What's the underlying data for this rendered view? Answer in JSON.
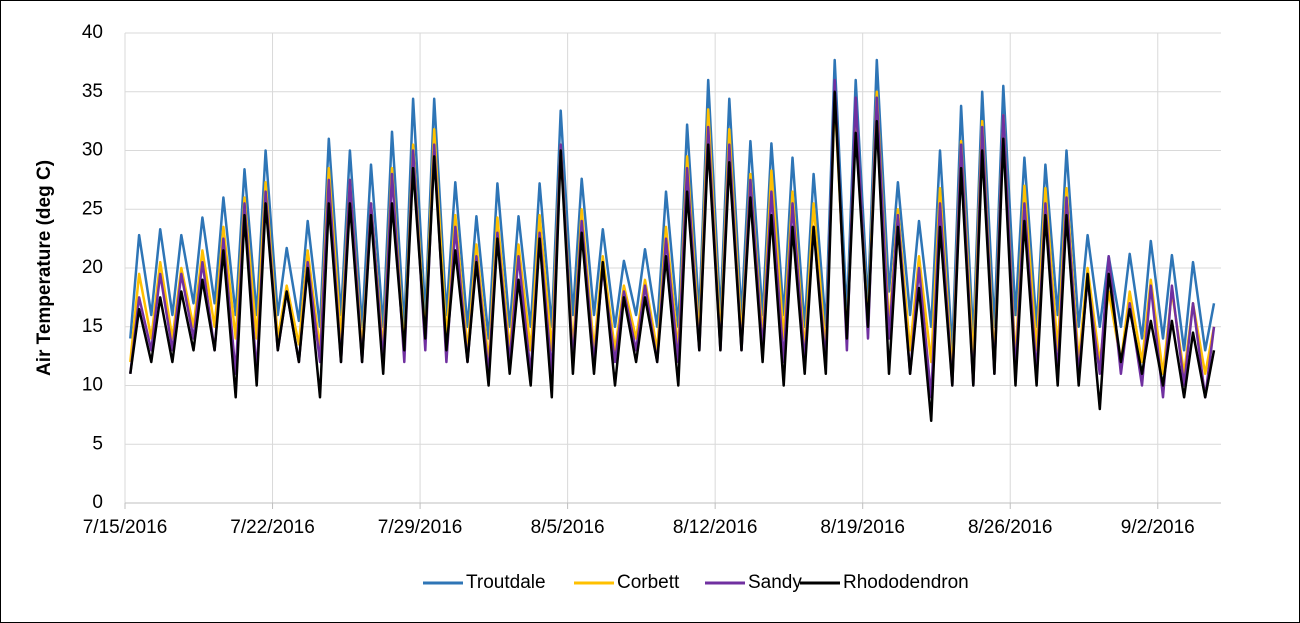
{
  "chart_data": {
    "type": "line",
    "y_label": "Air Temperature (deg C)",
    "xlim": [
      0,
      52
    ],
    "xticks": [
      {
        "value": 0,
        "label": "7/15/2016"
      },
      {
        "value": 7,
        "label": "7/22/2016"
      },
      {
        "value": 14,
        "label": "7/29/2016"
      },
      {
        "value": 21,
        "label": "8/5/2016"
      },
      {
        "value": 28,
        "label": "8/12/2016"
      },
      {
        "value": 35,
        "label": "8/19/2016"
      },
      {
        "value": 42,
        "label": "8/26/2016"
      },
      {
        "value": 49,
        "label": "9/2/2016"
      }
    ],
    "ylim": [
      0,
      40
    ],
    "yticks": [
      0,
      5,
      10,
      15,
      20,
      25,
      30,
      35,
      40
    ],
    "grid": true,
    "legend": "bottom",
    "x": [
      0.25,
      0.67,
      1.25,
      1.67,
      2.25,
      2.67,
      3.25,
      3.67,
      4.25,
      4.67,
      5.25,
      5.67,
      6.25,
      6.67,
      7.25,
      7.67,
      8.25,
      8.67,
      9.25,
      9.67,
      10.25,
      10.67,
      11.25,
      11.67,
      12.25,
      12.67,
      13.25,
      13.67,
      14.25,
      14.67,
      15.25,
      15.67,
      16.25,
      16.67,
      17.25,
      17.67,
      18.25,
      18.67,
      19.25,
      19.67,
      20.25,
      20.67,
      21.25,
      21.67,
      22.25,
      22.67,
      23.25,
      23.67,
      24.25,
      24.67,
      25.25,
      25.67,
      26.25,
      26.67,
      27.25,
      27.67,
      28.25,
      28.67,
      29.25,
      29.67,
      30.25,
      30.67,
      31.25,
      31.67,
      32.25,
      32.67,
      33.25,
      33.67,
      34.25,
      34.67,
      35.25,
      35.67,
      36.25,
      36.67,
      37.25,
      37.67,
      38.25,
      38.67,
      39.25,
      39.67,
      40.25,
      40.67,
      41.25,
      41.67,
      42.25,
      42.67,
      43.25,
      43.67,
      44.25,
      44.67,
      45.25,
      45.67,
      46.25,
      46.67,
      47.25,
      47.67,
      48.25,
      48.67,
      49.25,
      49.67,
      50.25,
      50.67,
      51.25,
      51.67
    ],
    "series": [
      {
        "name": "Troutdale",
        "color": "#2e75b6",
        "values": [
          14,
          22.8,
          16,
          23.3,
          16,
          22.8,
          17,
          24.3,
          17,
          26,
          16,
          28.4,
          16,
          30,
          16,
          21.7,
          15.5,
          24,
          15,
          31,
          16,
          30,
          15,
          28.8,
          15,
          31.6,
          15,
          34.4,
          16,
          34.4,
          16,
          27.3,
          15,
          24.4,
          14,
          27.2,
          15,
          24.4,
          15,
          27.2,
          15,
          33.4,
          16,
          27.6,
          16,
          23.3,
          15,
          20.6,
          16,
          21.6,
          15,
          26.5,
          15,
          32.2,
          16,
          36,
          16,
          34.4,
          16,
          30.8,
          16,
          30.6,
          16,
          29.4,
          15,
          28,
          15,
          37.7,
          16,
          36,
          17,
          37.7,
          18,
          27.3,
          16,
          24,
          15,
          30,
          13,
          33.8,
          14,
          35,
          15,
          35.5,
          16,
          29.4,
          15,
          28.8,
          16,
          30,
          15,
          22.8,
          15,
          21,
          15,
          21.2,
          14,
          22.3,
          14,
          21.1,
          13,
          20.5,
          13,
          17
        ]
      },
      {
        "name": "Corbett",
        "color": "#ffc000",
        "values": [
          12,
          19.5,
          14,
          20.5,
          14,
          20,
          15,
          21.5,
          15,
          23.5,
          14,
          26,
          14,
          27.3,
          14,
          18.5,
          13.5,
          21.5,
          13,
          28.5,
          14,
          27.5,
          13,
          25.5,
          13,
          28.5,
          13,
          30.5,
          14,
          31.8,
          14,
          24.5,
          13,
          22,
          12,
          24.3,
          13,
          22,
          13,
          24.5,
          13,
          30.5,
          13,
          25,
          13,
          21,
          13,
          18.5,
          14,
          19,
          13,
          23.5,
          13,
          29.5,
          14,
          33.5,
          14,
          31.8,
          14,
          28,
          14,
          28.3,
          14,
          26.5,
          13,
          25.5,
          13,
          34.5,
          14,
          33.5,
          15,
          35,
          15,
          25,
          13,
          21,
          12,
          26.8,
          11,
          30.8,
          12,
          32.5,
          12,
          33,
          12,
          27,
          13,
          26.8,
          13,
          26.8,
          12,
          20,
          12,
          18,
          12,
          18,
          12,
          19,
          11,
          18,
          11,
          17,
          11,
          15
        ]
      },
      {
        "name": "Sandy",
        "color": "#7030a0",
        "values": [
          11,
          17.5,
          13,
          19.5,
          13,
          19.5,
          14,
          20.5,
          13,
          22.5,
          11,
          25.5,
          11,
          26.5,
          13,
          18,
          12,
          20.5,
          12,
          27.5,
          12,
          27.5,
          12,
          25.5,
          12,
          28,
          12,
          30,
          13,
          30.5,
          12,
          23.5,
          12,
          21,
          11,
          23,
          12,
          21,
          11,
          23,
          11,
          30.5,
          12,
          24,
          12,
          20,
          12,
          18,
          13,
          18.5,
          12,
          22.5,
          12,
          28.5,
          13,
          32,
          13,
          30.5,
          13,
          27.5,
          13,
          26.5,
          12,
          25.5,
          12,
          23.5,
          12,
          36,
          13,
          34.5,
          14,
          34.5,
          14,
          24.5,
          11,
          20,
          9,
          25.5,
          10,
          30.5,
          10,
          32,
          11,
          33,
          11,
          25.5,
          11,
          25.5,
          11,
          26,
          11,
          19,
          11,
          21,
          11,
          17,
          10,
          18.5,
          9,
          18.5,
          10,
          17,
          9,
          15
        ]
      },
      {
        "name": "Rhododendron",
        "color": "#000000",
        "values": [
          11,
          16.5,
          12,
          17.5,
          12,
          18,
          13,
          19,
          13,
          21.5,
          9,
          24.5,
          10,
          25.5,
          13,
          18,
          12,
          20,
          9,
          25.5,
          12,
          25.5,
          12,
          24.5,
          11,
          25.5,
          13,
          28.5,
          14,
          29.5,
          13,
          21.5,
          12,
          20.5,
          10,
          22.5,
          11,
          19,
          10,
          22.5,
          9,
          30,
          11,
          23,
          11,
          20.5,
          10,
          17.5,
          12,
          17.5,
          12,
          21,
          10,
          26.5,
          13,
          30.5,
          13,
          29,
          13,
          26,
          12,
          24.5,
          10,
          23.5,
          11,
          23.5,
          11,
          35,
          14,
          31.5,
          15,
          32.5,
          11,
          23.5,
          11,
          18.3,
          7,
          23.5,
          10,
          28.5,
          10,
          30,
          11,
          31,
          10,
          24,
          10,
          24.5,
          10,
          24.5,
          10,
          19.5,
          8,
          19.5,
          12,
          16.5,
          11,
          15.5,
          10,
          15.5,
          9,
          14.5,
          9,
          13
        ]
      }
    ]
  }
}
